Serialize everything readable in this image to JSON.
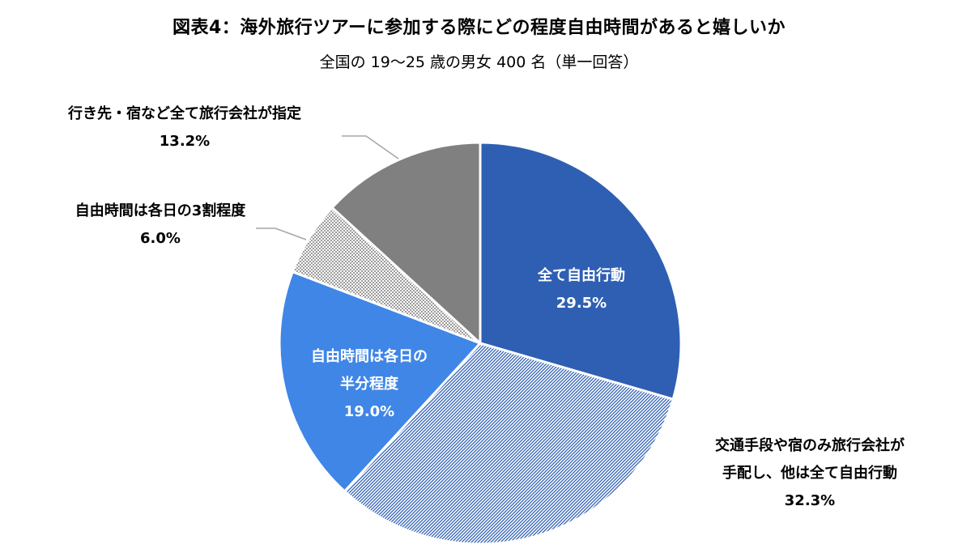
{
  "chart_data": {
    "type": "pie",
    "title": "図表4：海外旅行ツアーに参加する際にどの程度自由時間があると嬉しいか",
    "subtitle": "全国の 19～25 歳の男女 400 名（単一回答）",
    "start_angle_deg": 0,
    "direction": "clockwise",
    "slices": [
      {
        "label_lines": [
          "全て自由行動"
        ],
        "value": 29.5,
        "value_label": "29.5%",
        "color": "#2F5FB3",
        "pattern": "none",
        "label_position": "inside"
      },
      {
        "label_lines": [
          "交通手段や宿のみ旅行会社が",
          "手配し、他は全て自由行動"
        ],
        "value": 32.3,
        "value_label": "32.3%",
        "color": "#2F5FB3",
        "pattern": "fine-diagonal-lines",
        "label_position": "outside"
      },
      {
        "label_lines": [
          "自由時間は各日の",
          "半分程度"
        ],
        "value": 19.0,
        "value_label": "19.0%",
        "color": "#3F86E6",
        "pattern": "none",
        "label_position": "inside"
      },
      {
        "label_lines": [
          "自由時間は各日の3割程度"
        ],
        "value": 6.0,
        "value_label": "6.0%",
        "color": "#808080",
        "pattern": "dots",
        "label_position": "outside"
      },
      {
        "label_lines": [
          "行き先・宿など全て旅行会社が指定"
        ],
        "value": 13.2,
        "value_label": "13.2%",
        "color": "#808080",
        "pattern": "none",
        "label_position": "outside"
      }
    ]
  }
}
